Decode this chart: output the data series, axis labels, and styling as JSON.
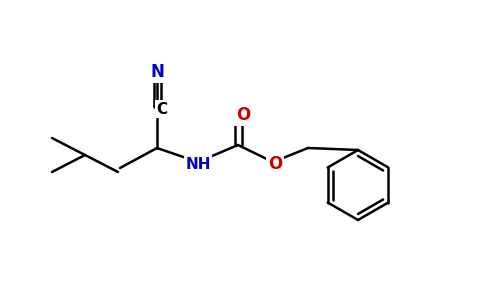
{
  "background_color": "#ffffff",
  "atom_colors": {
    "N": "#0000cc",
    "O": "#cc0000",
    "C": "#000000",
    "H": "#000000",
    "bond": "#000000"
  },
  "figsize": [
    4.94,
    3.08
  ],
  "dpi": 100
}
